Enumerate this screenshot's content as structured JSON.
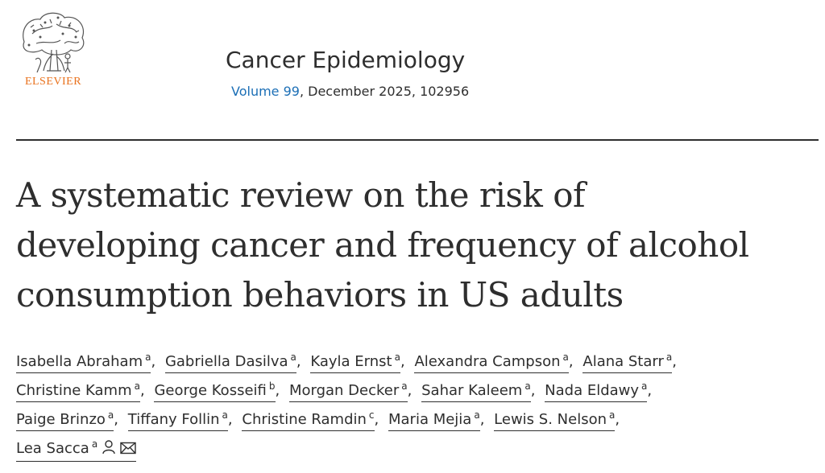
{
  "publisher": {
    "logo_text": "ELSEVIER",
    "logo_color": "#e9711c"
  },
  "journal": {
    "title": "Cancer Epidemiology",
    "volume_label": "Volume 99",
    "issue_info": ", December 2025, 102956",
    "link_color": "#1c6fb6"
  },
  "article": {
    "title_lines": [
      "A systematic review on the risk of",
      "developing cancer and frequency of alcohol",
      "consumption behaviors in US adults"
    ]
  },
  "authors": [
    {
      "name": "Isabella Abraham",
      "aff": "a"
    },
    {
      "name": "Gabriella Dasilva",
      "aff": "a"
    },
    {
      "name": "Kayla Ernst",
      "aff": "a"
    },
    {
      "name": "Alexandra Campson",
      "aff": "a"
    },
    {
      "name": "Alana Starr",
      "aff": "a"
    },
    {
      "name": "Christine Kamm",
      "aff": "a"
    },
    {
      "name": "George Kosseifi",
      "aff": "b"
    },
    {
      "name": "Morgan Decker",
      "aff": "a"
    },
    {
      "name": "Sahar Kaleem",
      "aff": "a"
    },
    {
      "name": "Nada Eldawy",
      "aff": "a"
    },
    {
      "name": "Paige Brinzo",
      "aff": "a"
    },
    {
      "name": "Tiffany Follin",
      "aff": "a"
    },
    {
      "name": "Christine Ramdin",
      "aff": "c"
    },
    {
      "name": "Maria Mejia",
      "aff": "a"
    },
    {
      "name": "Lewis S. Nelson",
      "aff": "a"
    },
    {
      "name": "Lea Sacca",
      "aff": "a",
      "icons": [
        "person-icon",
        "envelope-icon"
      ]
    }
  ]
}
